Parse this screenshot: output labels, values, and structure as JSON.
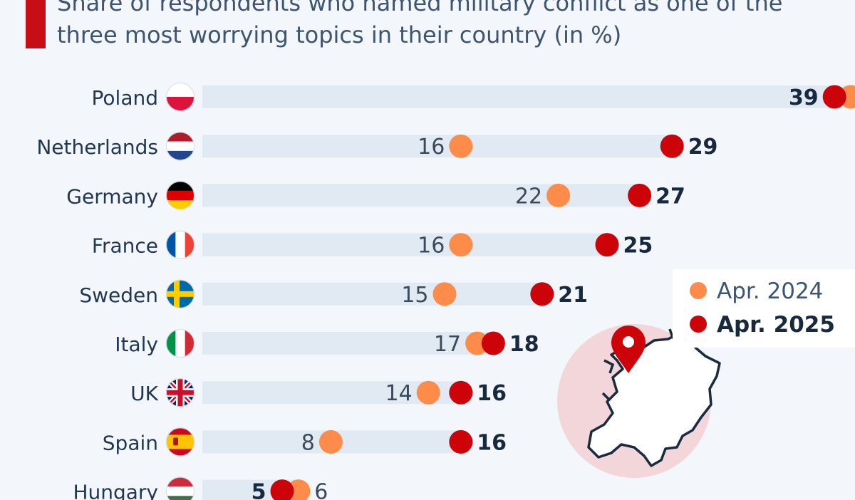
{
  "title": "Share of respondents who named military conflict as one of the three most worrying topics in their country (in %)",
  "colors": {
    "accent": "#c70d15",
    "apr2024": "#fd8b4a",
    "apr2025": "#cc0309",
    "track": "#e1e9f3",
    "label": "#1f3752",
    "value_bold": "#16293f",
    "map_circle": "#f3d6d9"
  },
  "legend": {
    "items": [
      {
        "label": "Apr. 2024",
        "color": "#fd8b4a",
        "bold": false
      },
      {
        "label": "Apr. 2025",
        "color": "#cc0309",
        "bold": true
      }
    ]
  },
  "icons": [
    "flag-poland-icon",
    "flag-netherlands-icon",
    "flag-germany-icon",
    "flag-france-icon",
    "flag-sweden-icon",
    "flag-italy-icon",
    "flag-uk-icon",
    "flag-spain-icon",
    "flag-hungary-icon",
    "europe-map-icon",
    "location-pin-icon"
  ],
  "chart_data": {
    "type": "dot",
    "categories": [
      "Poland",
      "Netherlands",
      "Germany",
      "France",
      "Sweden",
      "Italy",
      "UK",
      "Spain",
      "Hungary"
    ],
    "series": [
      {
        "name": "Apr. 2024",
        "values": [
          40,
          16,
          22,
          16,
          15,
          17,
          14,
          8,
          6
        ]
      },
      {
        "name": "Apr. 2025",
        "values": [
          39,
          29,
          27,
          25,
          21,
          18,
          16,
          16,
          5
        ]
      }
    ],
    "title": "Share of respondents who named military conflict as one of the three most worrying topics in their country (in %)",
    "xlim": [
      0,
      44
    ],
    "legend": "right"
  }
}
